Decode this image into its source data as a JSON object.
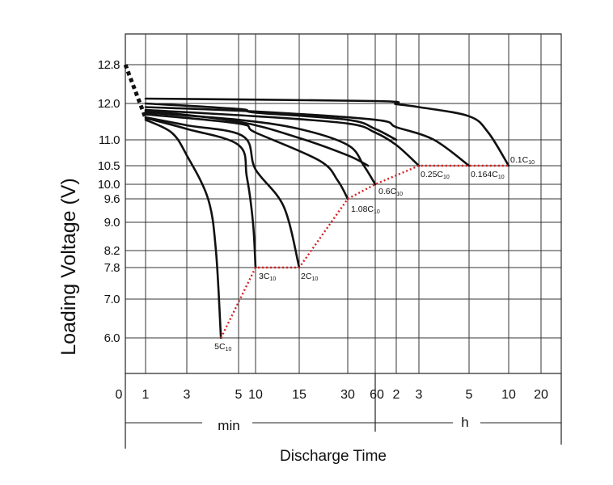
{
  "chart_data": {
    "type": "line",
    "title": "",
    "ylabel": "Loading Voltage (V)",
    "xlabel": "Discharge Time",
    "x_unit_labels": {
      "minutes": "min",
      "hours": "h"
    },
    "ylim": [
      5.0,
      13.0
    ],
    "y_ticks": [
      "12.8",
      "12.0",
      "11.0",
      "10.5",
      "10.0",
      "9.6",
      "9.0",
      "8.2",
      "7.8",
      "7.0",
      "6.0"
    ],
    "x_ticks": [
      "0",
      "1",
      "3",
      "5",
      "10",
      "15",
      "30",
      "60",
      "2",
      "3",
      "5",
      "10",
      "20"
    ],
    "grid": true,
    "series": [
      {
        "name": "5C10",
        "label": "5C",
        "sub": "10",
        "x": [
          "1 min",
          "2 min",
          "3 min",
          "3.7 min",
          "4 min",
          "4.2 min"
        ],
        "values": [
          11.55,
          11.2,
          10.7,
          9.6,
          8.2,
          6.0
        ]
      },
      {
        "name": "3C10",
        "label": "3C",
        "sub": "10",
        "x": [
          "1 min",
          "3 min",
          "5 min",
          "7 min",
          "9 min",
          "10 min"
        ],
        "values": [
          11.6,
          11.3,
          10.9,
          10.2,
          9.0,
          7.8
        ]
      },
      {
        "name": "2C10",
        "label": "2C",
        "sub": "10",
        "x": [
          "1 min",
          "3 min",
          "6 min",
          "10 min",
          "13 min",
          "15 min"
        ],
        "values": [
          11.62,
          11.4,
          11.1,
          10.4,
          9.4,
          7.8
        ]
      },
      {
        "name": "1.08C10",
        "label": "1.08C",
        "sub": "10",
        "x": [
          "1 min",
          "5 min",
          "10 min",
          "20 min",
          "26 min",
          "30 min"
        ],
        "values": [
          11.7,
          11.45,
          11.2,
          10.6,
          10.1,
          9.6
        ]
      },
      {
        "name": "0.6C10",
        "label": "0.6C",
        "sub": "10",
        "x": [
          "1 min",
          "5 min",
          "15 min",
          "30 min",
          "45 min",
          "60 min"
        ],
        "values": [
          11.75,
          11.55,
          11.3,
          10.9,
          10.5,
          10.0
        ]
      },
      {
        "name": "0.25C10",
        "label": "0.25C",
        "sub": "10",
        "x": [
          "1 min",
          "10 min",
          "30 min",
          "60 min",
          "2 h",
          "3 h"
        ],
        "values": [
          11.82,
          11.65,
          11.45,
          11.2,
          10.9,
          10.5
        ]
      },
      {
        "name": "0.164C10",
        "label": "0.164C",
        "sub": "10",
        "x": [
          "1 min",
          "10 min",
          "60 min",
          "2 h",
          "3.5 h",
          "5 h"
        ],
        "values": [
          11.9,
          11.78,
          11.55,
          11.35,
          11.0,
          10.5
        ]
      },
      {
        "name": "0.1C10",
        "label": "0.1C",
        "sub": "10",
        "x": [
          "1 min",
          "60 min",
          "2 h",
          "3 h",
          "5 h",
          "7 h",
          "10 h"
        ],
        "values": [
          12.1,
          12.05,
          11.98,
          11.9,
          11.65,
          11.2,
          10.5
        ]
      },
      {
        "name": "",
        "x": [
          "1 min",
          "5 min",
          "10 min",
          "30 min",
          "60 min",
          "2 h"
        ],
        "values": [
          12.0,
          11.85,
          11.75,
          11.55,
          11.3,
          11.0
        ]
      },
      {
        "name": "",
        "x": [
          "1 min",
          "5 min",
          "15 min",
          "30 min",
          "50 min"
        ],
        "values": [
          11.8,
          11.5,
          11.05,
          10.7,
          10.5
        ]
      }
    ],
    "end_voltage_line": {
      "style": "red dotted",
      "points": [
        [
          "4.2 min",
          6.0
        ],
        [
          "10 min",
          7.8
        ],
        [
          "15 min",
          7.8
        ],
        [
          "30 min",
          9.6
        ],
        [
          "60 min",
          10.0
        ],
        [
          "3 h",
          10.5
        ],
        [
          "10 h",
          10.5
        ]
      ]
    },
    "initial_segment": {
      "style": "black dashed",
      "x": [
        "0 min",
        "1 min"
      ],
      "values": [
        12.8,
        11.6
      ]
    }
  }
}
